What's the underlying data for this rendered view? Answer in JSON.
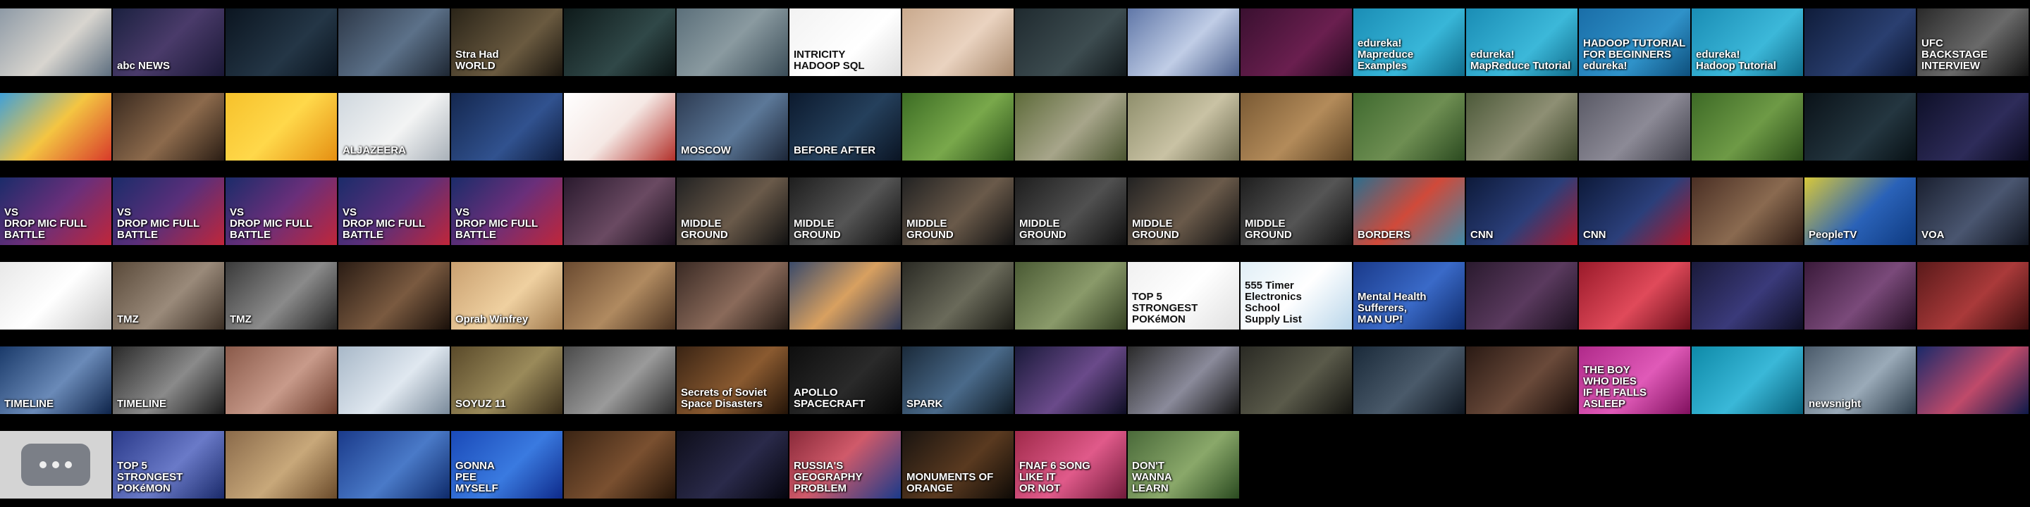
{
  "page": {
    "background": "#000000"
  },
  "rows": [
    {
      "tiles": [
        {
          "caption": "",
          "bg": "linear-gradient(135deg,#8e9aa6,#d8d5cf 55%,#5d6e7f)"
        },
        {
          "caption": "abc NEWS",
          "bg": "linear-gradient(135deg,#1b2140,#4a3b6a 50%,#1a1836)"
        },
        {
          "caption": "",
          "bg": "linear-gradient(135deg,#0b1520,#243646 60%,#0b1520)"
        },
        {
          "caption": "",
          "bg": "linear-gradient(135deg,#2d3848,#5c7189 55%,#1e2733)"
        },
        {
          "caption": "Stra  Had\nWORLD",
          "bg": "linear-gradient(135deg,#2a2418,#6a5a40 60%,#1b160f)"
        },
        {
          "caption": "",
          "bg": "linear-gradient(135deg,#0e1a1a,#304848 60%,#0b1414)"
        },
        {
          "caption": "",
          "bg": "linear-gradient(135deg,#5b6f7a,#8a9aa0 50%,#3b4d58)"
        },
        {
          "caption": "INTRICITY\nHADOOP           SQL",
          "bg": "linear-gradient(135deg,#f2f2f2,#ffffff 60%,#dedede)",
          "dark": true
        },
        {
          "caption": "",
          "bg": "linear-gradient(135deg,#c9a98d,#ead3c0 55%,#a8896d)"
        },
        {
          "caption": "",
          "bg": "linear-gradient(135deg,#1f2a2f,#3d4c50 60%,#11181b)"
        },
        {
          "caption": "",
          "bg": "linear-gradient(135deg,#6077a8,#c0cde6 55%,#4b5f8c)"
        },
        {
          "caption": "",
          "bg": "linear-gradient(135deg,#3a1030,#6a1f4f 60%,#260a20)"
        },
        {
          "caption": "edureka!\nMapreduce Examples",
          "bg": "linear-gradient(135deg,#1a8db5,#38b6d8 60%,#0f6b8a)"
        },
        {
          "caption": "edureka!\nMapReduce Tutorial",
          "bg": "linear-gradient(135deg,#1a8db5,#3cb8d9 60%,#0f6b8a)"
        },
        {
          "caption": "HADOOP TUTORIAL\nFOR BEGINNERS\nedureka!",
          "bg": "linear-gradient(135deg,#1a6ea8,#2f92c9 60%,#0e4f7c)"
        },
        {
          "caption": "edureka!\nHadoop Tutorial",
          "bg": "linear-gradient(135deg,#1a8db5,#3cb8d9 60%,#0f6b8a)"
        },
        {
          "caption": "",
          "bg": "linear-gradient(135deg,#0f1c3a,#2a3f70 60%,#0b1530)"
        },
        {
          "caption": "UFC\nBACKSTAGE\nINTERVIEW",
          "bg": "linear-gradient(135deg,#2a2a2a,#6a6a6a 55%,#111)"
        }
      ]
    },
    {
      "tiles": [
        {
          "caption": "",
          "bg": "linear-gradient(135deg,#3fa0d8,#f4c542 50%,#d83a2a)"
        },
        {
          "caption": "",
          "bg": "linear-gradient(135deg,#3a2a1f,#8c6a4c 55%,#2a1d14)"
        },
        {
          "caption": "",
          "bg": "linear-gradient(135deg,#f6c12b,#ffd84a 50%,#e58f12)"
        },
        {
          "caption": "ALJAZEERA",
          "bg": "linear-gradient(135deg,#cfd7de,#f3f4f4 55%,#a8b0b8)"
        },
        {
          "caption": "",
          "bg": "linear-gradient(135deg,#14274f,#31528f 60%,#0e1c3d)"
        },
        {
          "caption": "",
          "bg": "linear-gradient(135deg,#ffffff,#f5e8e4 50%,#b2302a)",
          "dark": true
        },
        {
          "caption": "MOSCOW",
          "bg": "linear-gradient(135deg,#2d3b52,#5c7898 55%,#1c2638)"
        },
        {
          "caption": "BEFORE     AFTER",
          "bg": "linear-gradient(135deg,#0c1a2e,#25405c 55%,#0a1423)"
        },
        {
          "caption": "",
          "bg": "linear-gradient(135deg,#3c6d24,#79a84b 55%,#2b5119)"
        },
        {
          "caption": "",
          "bg": "linear-gradient(135deg,#5e6b3a,#a7a58a 55%,#4a5530)"
        },
        {
          "caption": "",
          "bg": "linear-gradient(135deg,#8f8f6c,#c9c2a4 55%,#6c6a4f)"
        },
        {
          "caption": "",
          "bg": "linear-gradient(135deg,#7a5a34,#b38b5a 55%,#5e4425)"
        },
        {
          "caption": "",
          "bg": "linear-gradient(135deg,#3f6a2f,#6e8e52 55%,#2b4a20)"
        },
        {
          "caption": "",
          "bg": "linear-gradient(135deg,#4d5a3a,#8e8f74 55%,#3a4428)"
        },
        {
          "caption": "",
          "bg": "linear-gradient(135deg,#5a5a66,#8c8a96 55%,#3e3e48)"
        },
        {
          "caption": "",
          "bg": "linear-gradient(135deg,#3d6a26,#6e9a46 55%,#2a4d18)"
        },
        {
          "caption": "",
          "bg": "linear-gradient(135deg,#0a1218,#243640 60%,#071014)"
        },
        {
          "caption": "",
          "bg": "linear-gradient(135deg,#0e1028,#2e2c5a 60%,#0a0a1e)"
        }
      ]
    },
    {
      "tiles": [
        {
          "caption": "VS\nDROP MIC  FULL BATTLE",
          "bg": "linear-gradient(135deg,#1b2c6a,#6a2f7a 50%,#c0263a)"
        },
        {
          "caption": "VS\nDROP MIC  FULL BATTLE",
          "bg": "linear-gradient(135deg,#1b2c6a,#5a2f7a 50%,#c0263a)"
        },
        {
          "caption": "VS\nDROP MIC  FULL BATTLE",
          "bg": "linear-gradient(135deg,#1b2c6a,#6a2f7a 50%,#c0263a)"
        },
        {
          "caption": "VS\nDROP MIC  FULL BATTLE",
          "bg": "linear-gradient(135deg,#1b2c6a,#5a2f7a 50%,#c0263a)"
        },
        {
          "caption": "VS\nDROP MIC  FULL BATTLE",
          "bg": "linear-gradient(135deg,#1b2c6a,#6a2f7a 50%,#c0263a)"
        },
        {
          "caption": "",
          "bg": "linear-gradient(135deg,#2a1a2e,#6a4a62 55%,#1a0f1c)"
        },
        {
          "caption": "MIDDLE\nGROUND",
          "bg": "linear-gradient(135deg,#222,#6a5a4a 55%,#111)"
        },
        {
          "caption": "MIDDLE\nGROUND",
          "bg": "linear-gradient(135deg,#1e1e1e,#555 55%,#0f0f0f)"
        },
        {
          "caption": "MIDDLE\nGROUND",
          "bg": "linear-gradient(135deg,#222,#6a5a4a 55%,#111)"
        },
        {
          "caption": "MIDDLE\nGROUND",
          "bg": "linear-gradient(135deg,#1e1e1e,#505050 55%,#0f0f0f)"
        },
        {
          "caption": "MIDDLE\nGROUND",
          "bg": "linear-gradient(135deg,#222,#6a5a4a 55%,#111)"
        },
        {
          "caption": "MIDDLE\nGROUND",
          "bg": "linear-gradient(135deg,#1e1e1e,#555 55%,#0f0f0f)"
        },
        {
          "caption": "BORDERS",
          "bg": "linear-gradient(135deg,#2c6e8e,#d04a3a 50%,#3f8aa8)"
        },
        {
          "caption": "CNN",
          "bg": "linear-gradient(135deg,#0d1a3a,#2b3f7a 55%,#b0182a)"
        },
        {
          "caption": "CNN",
          "bg": "linear-gradient(135deg,#0d1a3a,#2b3f7a 55%,#b0182a)"
        },
        {
          "caption": "",
          "bg": "linear-gradient(135deg,#4a2f24,#8a6a50 55%,#2e1c14)"
        },
        {
          "caption": "PeopleTV",
          "bg": "linear-gradient(135deg,#d8c83a,#2a62b8 55%,#0e3a80)"
        },
        {
          "caption": "VOA",
          "bg": "linear-gradient(135deg,#1a2030,#4a5670 55%,#101520)"
        }
      ]
    },
    {
      "tiles": [
        {
          "caption": "",
          "bg": "linear-gradient(135deg,#e8e8e8,#ffffff 50%,#c8c8c8)"
        },
        {
          "caption": "TMZ",
          "bg": "linear-gradient(135deg,#5a4a3a,#9a8a7a 55%,#3a2e24)"
        },
        {
          "caption": "TMZ",
          "bg": "linear-gradient(135deg,#3a3a3a,#8a8a8a 55%,#222)"
        },
        {
          "caption": "",
          "bg": "linear-gradient(135deg,#2a1c14,#7a5a40 55%,#1a100a)"
        },
        {
          "caption": "Oprah Winfrey",
          "bg": "linear-gradient(135deg,#c9a070,#efd0a0 55%,#a07a4e)"
        },
        {
          "caption": "",
          "bg": "linear-gradient(135deg,#6a4a30,#b08a60 55%,#4a3220)"
        },
        {
          "caption": "",
          "bg": "linear-gradient(135deg,#3a2a24,#8a6a5a 55%,#241a14)"
        },
        {
          "caption": "",
          "bg": "linear-gradient(135deg,#3a4a6a,#d8a060 50%,#2a3454)"
        },
        {
          "caption": "",
          "bg": "linear-gradient(135deg,#2a2a24,#6a6a5a 55%,#1a1a14)"
        },
        {
          "caption": "",
          "bg": "linear-gradient(135deg,#4a5a34,#8a9a6a 55%,#334022)"
        },
        {
          "caption": "TOP 5\nSTRONGEST\nPOKéMON",
          "bg": "linear-gradient(135deg,#f0f0f0,#ffffff 50%,#e0e0e0)",
          "dark": true
        },
        {
          "caption": "555 Timer\nElectronics\nSchool\nSupply List",
          "bg": "linear-gradient(135deg,#e0eef6,#ffffff 50%,#b9d6ea)",
          "dark": true
        },
        {
          "caption": "Mental Health\nSufferers,\nMAN UP!",
          "bg": "linear-gradient(135deg,#1a3a8a,#3a6ac8 55%,#0e2a6a)"
        },
        {
          "caption": "",
          "bg": "linear-gradient(135deg,#2a1a2e,#5a3a5e 55%,#1a0f1e)"
        },
        {
          "caption": "",
          "bg": "linear-gradient(135deg,#9a1a2a,#e04a5a 55%,#6a0e1a)"
        },
        {
          "caption": "",
          "bg": "linear-gradient(135deg,#1a1a3a,#3a3a7a 55%,#0e0e24)"
        },
        {
          "caption": "",
          "bg": "linear-gradient(135deg,#3a1a3a,#7a4a7a 55%,#240e24)"
        },
        {
          "caption": "",
          "bg": "linear-gradient(135deg,#5a1a1a,#aa3a3a 55%,#3a0e0e)"
        }
      ]
    },
    {
      "tiles": [
        {
          "caption": "TIMELINE",
          "bg": "linear-gradient(135deg,#1a3a6a,#6a8ab8 55%,#0e244a)"
        },
        {
          "caption": "TIMELINE",
          "bg": "linear-gradient(135deg,#2a2a2a,#8a8a8a 55%,#1a1a1a)"
        },
        {
          "caption": "",
          "bg": "linear-gradient(135deg,#8a5a4a,#c89a8a 55%,#6a3a2a)"
        },
        {
          "caption": "",
          "bg": "linear-gradient(135deg,#a8b8c8,#e0e8f0 55%,#7a8a9a)"
        },
        {
          "caption": "SOYUZ 11",
          "bg": "linear-gradient(135deg,#5a4a2a,#9a8a5a 55%,#3a2e1a)"
        },
        {
          "caption": "",
          "bg": "linear-gradient(135deg,#4a4a4a,#9a9a9a 55%,#2a2a2a)"
        },
        {
          "caption": "Secrets of Soviet\nSpace Disasters",
          "bg": "linear-gradient(135deg,#3a2414,#8a5a30 55%,#241408)"
        },
        {
          "caption": "APOLLO SPACECRAFT",
          "bg": "linear-gradient(135deg,#0e0e0e,#2a2a2a 55%,#050505)"
        },
        {
          "caption": "SPARK",
          "bg": "linear-gradient(135deg,#1a2a3a,#4a6a8a 55%,#0e1a24)"
        },
        {
          "caption": "",
          "bg": "linear-gradient(135deg,#1a1a3a,#6a4a8a 55%,#0e0e24)"
        },
        {
          "caption": "",
          "bg": "linear-gradient(135deg,#2a2a2a,#8a8a9a 55%,#141414)"
        },
        {
          "caption": "",
          "bg": "linear-gradient(135deg,#2a2a24,#5a5a4a 55%,#141410)"
        },
        {
          "caption": "",
          "bg": "linear-gradient(135deg,#1a2a3a,#4a5a6a 55%,#0e1620)"
        },
        {
          "caption": "",
          "bg": "linear-gradient(135deg,#2a1a14,#6a4a3a 55%,#1a0e0a)"
        },
        {
          "caption": "THE BOY\nWHO DIES\nIF HE FALLS\nASLEEP",
          "bg": "linear-gradient(135deg,#b02a8a,#e05ab8 55%,#80105e)"
        },
        {
          "caption": "",
          "bg": "linear-gradient(135deg,#0e8aa8,#3ab8d8 55%,#06607a)"
        },
        {
          "caption": "newsnight",
          "bg": "linear-gradient(135deg,#4a5a6a,#9aaab8 55%,#2a3a48)"
        },
        {
          "caption": "",
          "bg": "linear-gradient(135deg,#1a2a6a,#c04a6a 55%,#0e1a4a)"
        }
      ]
    },
    {
      "tiles": [
        {
          "caption": "",
          "bg": "#d4d4d4",
          "placeholder": true
        },
        {
          "caption": "TOP 5\nSTRONGEST\nPOKéMON",
          "bg": "linear-gradient(135deg,#2a3a8a,#6a7ac8 55%,#1a2a6a)"
        },
        {
          "caption": "",
          "bg": "linear-gradient(135deg,#8a6a4a,#c8a87a 55%,#6a4a2a)"
        },
        {
          "caption": "",
          "bg": "linear-gradient(135deg,#1a3a8a,#4a7ac8 55%,#0e2a6a)"
        },
        {
          "caption": "GONNA\nPEE\nMYSELF",
          "bg": "linear-gradient(135deg,#1a4ab8,#3a7ae0 55%,#0e2a8a)"
        },
        {
          "caption": "",
          "bg": "linear-gradient(135deg,#3a2414,#7a5030 55%,#241408)"
        },
        {
          "caption": "",
          "bg": "linear-gradient(135deg,#0e0e1a,#2a2a4a 55%,#05050e)"
        },
        {
          "caption": "RUSSIA'S\nGEOGRAPHY\nPROBLEM",
          "bg": "linear-gradient(135deg,#8a2a3a,#d05a6a 45%,#1a3a8a)"
        },
        {
          "caption": "MONUMENTS OF\nORANGE",
          "bg": "linear-gradient(135deg,#1a1410,#5a3a20 55%,#0e0a06)"
        },
        {
          "caption": "FNAF 6 SONG\nLIKE IT\nOR NOT",
          "bg": "linear-gradient(135deg,#a02a4a,#e05a8a 55%,#701a3a)"
        },
        {
          "caption": "DON'T\nWANNA\nLEARN",
          "bg": "linear-gradient(135deg,#4a6a3a,#8aa86a 55%,#2a4a20)"
        }
      ]
    }
  ]
}
